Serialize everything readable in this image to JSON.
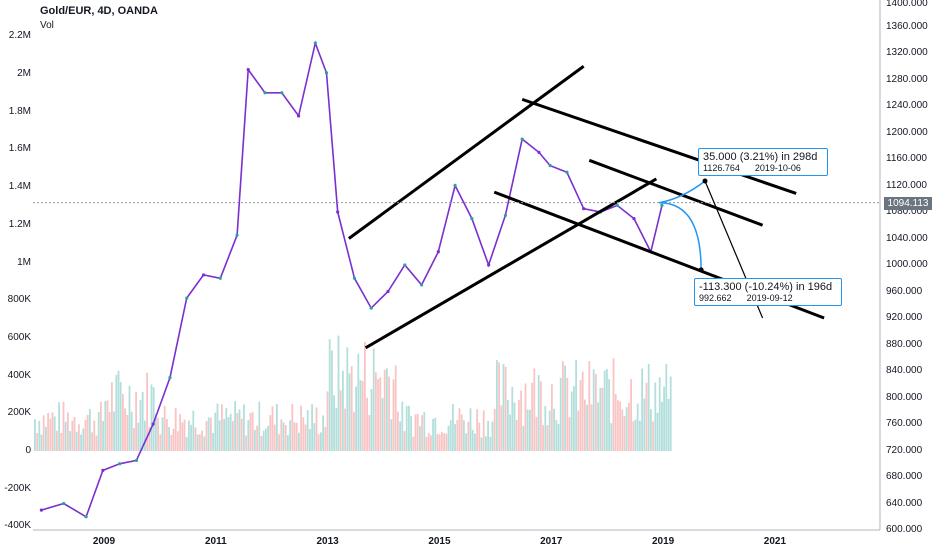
{
  "header": {
    "title": "Gold/EUR, 4D, OANDA",
    "volume_label": "Vol"
  },
  "colors": {
    "up": "#26a69a",
    "down": "#ef5350",
    "up_candle": "#7b2fd0",
    "vol_up": "#b2dfdb",
    "vol_down": "#f8c4c4",
    "annotation": "#2196f3",
    "trendline": "#000000"
  },
  "current_price_label": "1094.113",
  "annotations": {
    "upper": {
      "main": "35.000 (3.21%) in 298d",
      "price": "1126.764",
      "date": "2019-10-06"
    },
    "lower": {
      "main": "-113.300 (-10.24%) in 196d",
      "price": "992.662",
      "date": "2019-09-12"
    }
  },
  "chart_data": {
    "type": "line",
    "title": "Gold/EUR, 4D, OANDA",
    "xlabel": "",
    "ylabel": "",
    "x_ticks": [
      "2009",
      "2011",
      "2013",
      "2015",
      "2017",
      "2019",
      "2021"
    ],
    "price_axis": {
      "ylim": [
        600,
        1400
      ],
      "ticks": [
        "600.000",
        "640.000",
        "680.000",
        "720.000",
        "760.000",
        "800.000",
        "840.000",
        "880.000",
        "920.000",
        "960.000",
        "1000.000",
        "1040.000",
        "1080.000",
        "1120.000",
        "1160.000",
        "1200.000",
        "1240.000",
        "1280.000",
        "1320.000",
        "1360.000",
        "1400.000"
      ]
    },
    "volume_axis": {
      "ylim": [
        -400000,
        2400000
      ],
      "ticks": [
        "-400K",
        "-200K",
        "0",
        "200K",
        "400K",
        "600K",
        "800K",
        "1M",
        "1.2M",
        "1.4M",
        "1.6M",
        "1.8M",
        "2M",
        "2.2M"
      ]
    },
    "price_series": {
      "name": "Gold/EUR",
      "x": [
        2007.9,
        2008.3,
        2008.7,
        2009.0,
        2009.3,
        2009.6,
        2009.9,
        2010.2,
        2010.5,
        2010.8,
        2011.1,
        2011.4,
        2011.6,
        2011.9,
        2012.2,
        2012.5,
        2012.8,
        2013.0,
        2013.2,
        2013.5,
        2013.8,
        2014.1,
        2014.4,
        2014.7,
        2015.0,
        2015.3,
        2015.6,
        2015.9,
        2016.2,
        2016.5,
        2016.8,
        2017.0,
        2017.3,
        2017.6,
        2017.9,
        2018.2,
        2018.5,
        2018.8,
        2019.0
      ],
      "y": [
        630,
        640,
        620,
        690,
        700,
        705,
        760,
        830,
        950,
        985,
        980,
        1045,
        1295,
        1260,
        1260,
        1225,
        1335,
        1290,
        1080,
        980,
        935,
        960,
        1000,
        970,
        1020,
        1120,
        1070,
        1000,
        1075,
        1190,
        1170,
        1150,
        1140,
        1085,
        1080,
        1090,
        1070,
        1020,
        1090
      ]
    },
    "volume_note": "volume histogram bars with values between 0 and about 800K",
    "current_price": 1094.113,
    "measure_annotations": [
      {
        "text": "35.000 (3.21%) in 298d",
        "price": 1126.764,
        "date": "2019-10-06"
      },
      {
        "text": "-113.300 (-10.24%) in 196d",
        "price": 992.662,
        "date": "2019-09-12"
      }
    ],
    "trendlines": [
      {
        "from": [
          2013.4,
          1040
        ],
        "to": [
          2017.6,
          1300
        ]
      },
      {
        "from": [
          2013.7,
          875
        ],
        "to": [
          2018.9,
          1130
        ]
      },
      {
        "from": [
          2016.5,
          1250
        ],
        "to": [
          2021.4,
          1108
        ]
      },
      {
        "from": [
          2017.7,
          1158
        ],
        "to": [
          2020.8,
          1060
        ]
      },
      {
        "from": [
          2016.0,
          1110
        ],
        "to": [
          2021.9,
          920
        ]
      }
    ],
    "grid": false,
    "legend": "none"
  }
}
